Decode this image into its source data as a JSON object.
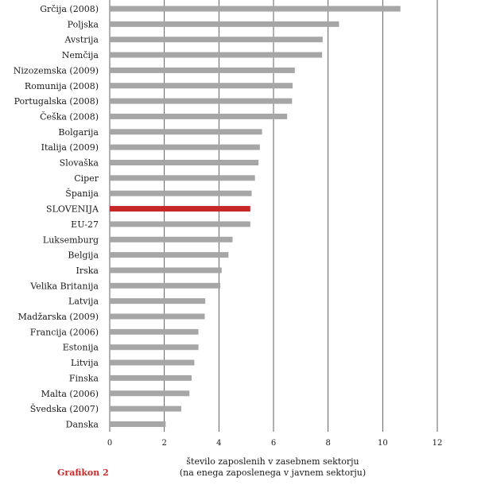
{
  "chart_data": {
    "type": "bar",
    "orientation": "horizontal",
    "categories": [
      "Grčija (2008)",
      "Poljska",
      "Avstrija",
      "Nemčija",
      "Nizozemska (2009)",
      "Romunija (2008)",
      "Portugalska (2008)",
      "Češka (2008)",
      "Bolgarija",
      "Italija (2009)",
      "Slovaška",
      "Ciper",
      "Španija",
      "SLOVENIJA",
      "EU-27",
      "Luksemburg",
      "Belgija",
      "Irska",
      "Velika Britanija",
      "Latvija",
      "Madžarska (2009)",
      "Francija (2006)",
      "Estonija",
      "Litvija",
      "Finska",
      "Malta (2006)",
      "Švedska (2007)",
      "Danska"
    ],
    "values": [
      10.65,
      8.4,
      7.8,
      7.78,
      6.78,
      6.7,
      6.68,
      6.5,
      5.58,
      5.5,
      5.45,
      5.32,
      5.2,
      5.15,
      5.15,
      4.5,
      4.35,
      4.1,
      4.05,
      3.5,
      3.48,
      3.25,
      3.25,
      3.1,
      3.0,
      2.92,
      2.62,
      2.05
    ],
    "highlight_category": "SLOVENIJA",
    "bar_color": "#a6a6a6",
    "highlight_color": "#c62828",
    "xlim": [
      0,
      12
    ],
    "xticks": [
      0,
      2,
      4,
      6,
      8,
      10,
      12
    ],
    "grid": "vertical",
    "xlabel_lines": [
      "število zaposlenih v zasebnem sektorju",
      "(na enega zaposlenega v javnem sektorju)"
    ],
    "caption": "Grafikon 2",
    "caption_color": "#c62828"
  }
}
